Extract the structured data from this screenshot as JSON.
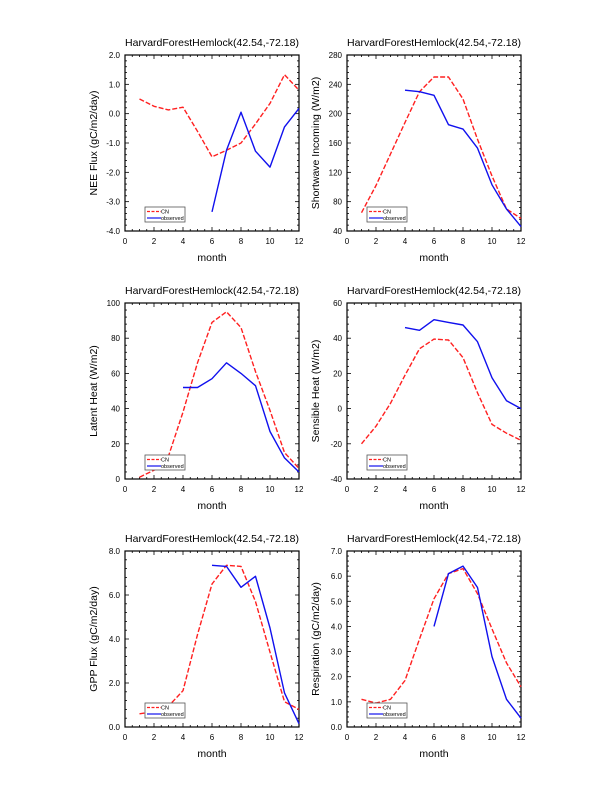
{
  "colors": {
    "cn": "#ff2020",
    "observed": "#1010ee",
    "axis": "#000000"
  },
  "chart_data": [
    {
      "type": "line",
      "title": "HarvardForestHemlock(42.54,-72.18)",
      "xlabel": "month",
      "ylabel": "NEE Flux (gC/m2/day)",
      "xlim": [
        0,
        12
      ],
      "ylim": [
        -4.0,
        2.0
      ],
      "xticks": [
        "0",
        "2",
        "4",
        "6",
        "8",
        "10",
        "12"
      ],
      "yticks": [
        "-4.0",
        "-3.0",
        "-2.0",
        "-1.0",
        "0.0",
        "1.0",
        "2.0"
      ],
      "legend_position": "bottom-left",
      "series": [
        {
          "name": "CN",
          "x": [
            1,
            2,
            3,
            4,
            5,
            6,
            7,
            8,
            9,
            10,
            11,
            12
          ],
          "values": [
            0.5,
            0.25,
            0.13,
            0.22,
            -0.6,
            -1.47,
            -1.25,
            -1.0,
            -0.35,
            0.35,
            1.33,
            0.8
          ]
        },
        {
          "name": "observed",
          "x": [
            6,
            7,
            8,
            9,
            10,
            11,
            12
          ],
          "values": [
            -3.35,
            -1.25,
            0.05,
            -1.28,
            -1.82,
            -0.45,
            0.18
          ]
        }
      ]
    },
    {
      "type": "line",
      "title": "HarvardForestHemlock(42.54,-72.18)",
      "xlabel": "month",
      "ylabel": "Shortwave Incoming (W/m2)",
      "xlim": [
        0,
        12
      ],
      "ylim": [
        40,
        280
      ],
      "xticks": [
        "0",
        "2",
        "4",
        "6",
        "8",
        "10",
        "12"
      ],
      "yticks": [
        "40",
        "80",
        "120",
        "160",
        "200",
        "240",
        "280"
      ],
      "legend_position": "bottom-left",
      "series": [
        {
          "name": "CN",
          "x": [
            1,
            2,
            3,
            4,
            5,
            6,
            7,
            8,
            9,
            10,
            11,
            12
          ],
          "values": [
            65,
            102,
            145,
            188,
            230,
            250,
            250,
            220,
            165,
            115,
            70,
            57
          ]
        },
        {
          "name": "observed",
          "x": [
            4,
            5,
            6,
            7,
            8,
            9,
            10,
            11,
            12
          ],
          "values": [
            232,
            230,
            225,
            185,
            179,
            153,
            103,
            70,
            46
          ]
        }
      ]
    },
    {
      "type": "line",
      "title": "HarvardForestHemlock(42.54,-72.18)",
      "xlabel": "month",
      "ylabel": "Latent Heat (W/m2)",
      "xlim": [
        0,
        12
      ],
      "ylim": [
        0,
        100
      ],
      "xticks": [
        "0",
        "2",
        "4",
        "6",
        "8",
        "10",
        "12"
      ],
      "yticks": [
        "0",
        "20",
        "40",
        "60",
        "80",
        "100"
      ],
      "legend_position": "bottom-left",
      "series": [
        {
          "name": "CN",
          "x": [
            1,
            2,
            3,
            4,
            5,
            6,
            7,
            8,
            9,
            10,
            11,
            12
          ],
          "values": [
            1,
            5,
            13,
            38,
            66,
            89,
            95,
            86,
            61,
            39,
            15,
            6
          ]
        },
        {
          "name": "observed",
          "x": [
            4,
            5,
            6,
            7,
            8,
            9,
            10,
            11,
            12
          ],
          "values": [
            52,
            52,
            57,
            66,
            60,
            53,
            27,
            12,
            4
          ]
        }
      ]
    },
    {
      "type": "line",
      "title": "HarvardForestHemlock(42.54,-72.18)",
      "xlabel": "month",
      "ylabel": "Sensible Heat (W/m2)",
      "xlim": [
        0,
        12
      ],
      "ylim": [
        -40,
        60
      ],
      "xticks": [
        "0",
        "2",
        "4",
        "6",
        "8",
        "10",
        "12"
      ],
      "yticks": [
        "-40",
        "-20",
        "0",
        "20",
        "40",
        "60"
      ],
      "legend_position": "bottom-left",
      "series": [
        {
          "name": "CN",
          "x": [
            1,
            2,
            3,
            4,
            5,
            6,
            7,
            8,
            9,
            10,
            11,
            12
          ],
          "values": [
            -20,
            -10,
            3,
            19,
            34,
            39.5,
            39,
            29,
            9,
            -9,
            -14,
            -18
          ]
        },
        {
          "name": "observed",
          "x": [
            4,
            5,
            6,
            7,
            8,
            9,
            10,
            11,
            12
          ],
          "values": [
            46,
            44.5,
            50.5,
            49,
            47.5,
            38,
            17.5,
            4.5,
            0
          ]
        }
      ]
    },
    {
      "type": "line",
      "title": "HarvardForestHemlock(42.54,-72.18)",
      "xlabel": "month",
      "ylabel": "GPP Flux (gC/m2/day)",
      "xlim": [
        0,
        12
      ],
      "ylim": [
        0.0,
        8.0
      ],
      "xticks": [
        "0",
        "2",
        "4",
        "6",
        "8",
        "10",
        "12"
      ],
      "yticks": [
        "0.0",
        "2.0",
        "4.0",
        "6.0",
        "8.0"
      ],
      "legend_position": "bottom-left",
      "series": [
        {
          "name": "CN",
          "x": [
            1,
            2,
            3,
            4,
            5,
            6,
            7,
            8,
            9,
            10,
            11,
            12
          ],
          "values": [
            0.6,
            0.7,
            0.95,
            1.65,
            4.2,
            6.5,
            7.35,
            7.3,
            5.7,
            3.4,
            1.15,
            0.8
          ]
        },
        {
          "name": "observed",
          "x": [
            6,
            7,
            8,
            9,
            10,
            11,
            12
          ],
          "values": [
            7.35,
            7.3,
            6.35,
            6.85,
            4.5,
            1.55,
            0.15
          ]
        }
      ]
    },
    {
      "type": "line",
      "title": "HarvardForestHemlock(42.54,-72.18)",
      "xlabel": "month",
      "ylabel": "Respiration (gC/m2/day)",
      "xlim": [
        0,
        12
      ],
      "ylim": [
        0.0,
        7.0
      ],
      "xticks": [
        "0",
        "2",
        "4",
        "6",
        "8",
        "10",
        "12"
      ],
      "yticks": [
        "0.0",
        "1.0",
        "2.0",
        "3.0",
        "4.0",
        "5.0",
        "6.0",
        "7.0"
      ],
      "legend_position": "bottom-left",
      "series": [
        {
          "name": "CN",
          "x": [
            1,
            2,
            3,
            4,
            5,
            6,
            7,
            8,
            9,
            10,
            11,
            12
          ],
          "values": [
            1.1,
            0.95,
            1.1,
            1.85,
            3.5,
            5.1,
            6.1,
            6.3,
            5.3,
            3.9,
            2.55,
            1.6
          ]
        },
        {
          "name": "observed",
          "x": [
            6,
            7,
            8,
            9,
            10,
            11,
            12
          ],
          "values": [
            4.0,
            6.1,
            6.4,
            5.55,
            2.8,
            1.1,
            0.35
          ]
        }
      ]
    }
  ]
}
